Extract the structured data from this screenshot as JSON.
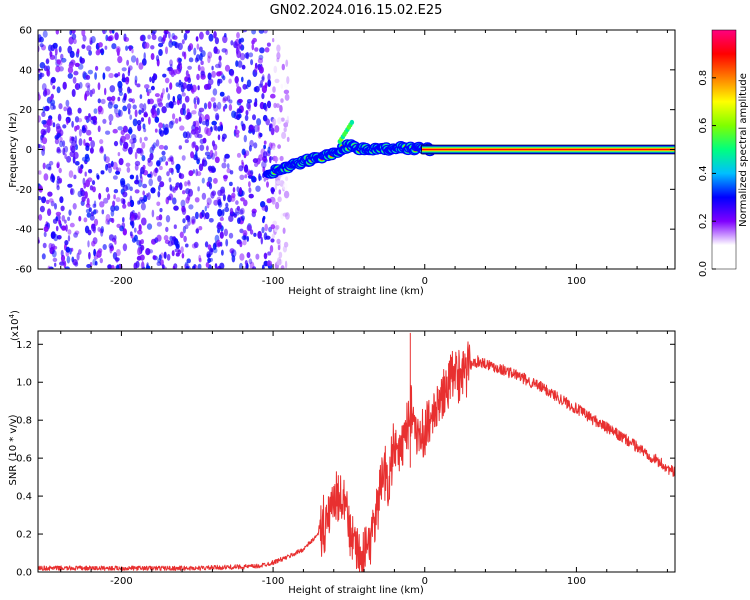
{
  "figure_title": "GN02.2024.016.15.02.E25",
  "colors": {
    "snr_line": "#e83030",
    "axis": "#000000",
    "colormap": [
      "#ffffff",
      "#ffffff",
      "#7f00ff",
      "#0000ff",
      "#00bfff",
      "#00ff7f",
      "#7fff00",
      "#ffff00",
      "#ff7f00",
      "#ff0000",
      "#ff007f"
    ]
  },
  "chart_data": [
    {
      "type": "heatmap",
      "xlabel": "Height of straight line (km)",
      "ylabel": "Frequency (Hz)",
      "xlim": [
        -255,
        165
      ],
      "ylim": [
        -60,
        60
      ],
      "x_ticks": [
        -200,
        -100,
        0,
        100
      ],
      "x_tick_labels": [
        "-200",
        "-100",
        "0",
        "100"
      ],
      "y_ticks": [
        -60,
        -40,
        -20,
        0,
        20,
        40,
        60
      ],
      "y_tick_labels": [
        "-60",
        "-40",
        "-20",
        "0",
        "20",
        "40",
        "60"
      ],
      "colorbar": {
        "label": "Normalized spectral amplitude",
        "range": [
          0,
          1
        ],
        "ticks": [
          0.0,
          0.2,
          0.4,
          0.6,
          0.8
        ],
        "tick_labels": [
          "0.0",
          "0.2",
          "0.4",
          "0.6",
          "0.8"
        ]
      },
      "features": {
        "noise_region_x": [
          -255,
          -90
        ],
        "signal_trace": [
          {
            "x": -103,
            "f": -12
          },
          {
            "x": -90,
            "f": -9
          },
          {
            "x": -75,
            "f": -5
          },
          {
            "x": -60,
            "f": -2
          },
          {
            "x": -50,
            "f": 2
          },
          {
            "x": -40,
            "f": 0
          },
          {
            "x": -25,
            "f": 0
          },
          {
            "x": -15,
            "f": 1
          },
          {
            "x": 5,
            "f": 0
          },
          {
            "x": 165,
            "f": 0
          }
        ],
        "carrier_frequency_hz": 0
      }
    },
    {
      "type": "line",
      "xlabel": "Height of straight line (km)",
      "ylabel": "SNR (10 * v/v)",
      "y_exponent_label": "(x10",
      "y_exponent": "4",
      "xlim": [
        -255,
        165
      ],
      "ylim": [
        0,
        1.27
      ],
      "x_ticks": [
        -200,
        -100,
        0,
        100
      ],
      "x_tick_labels": [
        "-200",
        "-100",
        "0",
        "100"
      ],
      "y_ticks": [
        0.0,
        0.2,
        0.4,
        0.6,
        0.8,
        1.0,
        1.2
      ],
      "y_tick_labels": [
        "0.0",
        "0.2",
        "0.4",
        "0.6",
        "0.8",
        "1.0",
        "1.2"
      ],
      "series": [
        {
          "x": [
            -255,
            -200,
            -150,
            -110,
            -100,
            -90,
            -80,
            -70,
            -62,
            -57,
            -53,
            -49,
            -45,
            -40,
            -36,
            -32,
            -28,
            -24,
            -20,
            -16,
            -12,
            -8,
            -4,
            0,
            5,
            10,
            15,
            20,
            25,
            30,
            35,
            40,
            50,
            60,
            80,
            100,
            120,
            140,
            165
          ],
          "y": [
            0.02,
            0.02,
            0.02,
            0.03,
            0.05,
            0.08,
            0.12,
            0.2,
            0.32,
            0.38,
            0.35,
            0.22,
            0.12,
            0.08,
            0.12,
            0.28,
            0.55,
            0.45,
            0.7,
            0.6,
            0.78,
            0.88,
            0.7,
            0.72,
            0.82,
            0.9,
            0.98,
            1.03,
            1.07,
            1.09,
            1.11,
            1.1,
            1.07,
            1.04,
            0.96,
            0.86,
            0.76,
            0.66,
            0.52
          ]
        }
      ]
    }
  ]
}
